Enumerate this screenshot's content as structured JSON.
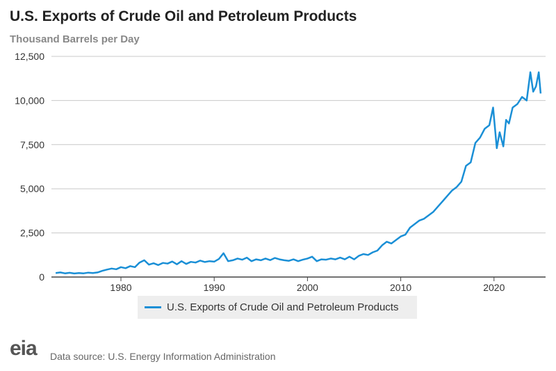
{
  "chart_data": {
    "type": "line",
    "title": "U.S. Exports of Crude Oil and Petroleum Products",
    "ylabel": "Thousand Barrels per Day",
    "xlabel": "",
    "ylim": [
      0,
      12500
    ],
    "xlim": [
      1973,
      2025.5
    ],
    "yticks": [
      "0",
      "2,500",
      "5,000",
      "7,500",
      "10,000",
      "12,500"
    ],
    "ytick_values": [
      0,
      2500,
      5000,
      7500,
      10000,
      12500
    ],
    "xticks": [
      "1980",
      "1990",
      "2000",
      "2010",
      "2020"
    ],
    "xtick_values": [
      1980,
      1990,
      2000,
      2010,
      2020
    ],
    "grid": "horizontal",
    "legend": "bottom",
    "color": "#1a8fd6",
    "series": [
      {
        "name": "U.S. Exports of Crude Oil and Petroleum Products",
        "x": [
          1973,
          1973.5,
          1974,
          1974.5,
          1975,
          1975.5,
          1976,
          1976.5,
          1977,
          1977.5,
          1978,
          1978.5,
          1979,
          1979.5,
          1980,
          1980.5,
          1981,
          1981.5,
          1982,
          1982.5,
          1983,
          1983.5,
          1984,
          1984.5,
          1985,
          1985.5,
          1986,
          1986.5,
          1987,
          1987.5,
          1988,
          1988.5,
          1989,
          1989.5,
          1990,
          1990.5,
          1991,
          1991.5,
          1992,
          1992.5,
          1993,
          1993.5,
          1994,
          1994.5,
          1995,
          1995.5,
          1996,
          1996.5,
          1997,
          1997.5,
          1998,
          1998.5,
          1999,
          1999.5,
          2000,
          2000.5,
          2001,
          2001.5,
          2002,
          2002.5,
          2003,
          2003.5,
          2004,
          2004.5,
          2005,
          2005.5,
          2006,
          2006.5,
          2007,
          2007.5,
          2008,
          2008.5,
          2009,
          2009.5,
          2010,
          2010.5,
          2011,
          2011.5,
          2012,
          2012.5,
          2013,
          2013.5,
          2014,
          2014.5,
          2015,
          2015.5,
          2016,
          2016.5,
          2017,
          2017.5,
          2018,
          2018.5,
          2019,
          2019.5,
          2019.9,
          2020.3,
          2020.6,
          2021,
          2021.3,
          2021.6,
          2022,
          2022.5,
          2023,
          2023.5,
          2023.9,
          2024.2,
          2024.5,
          2024.8,
          2025
        ],
        "y": [
          230,
          260,
          210,
          240,
          200,
          230,
          210,
          250,
          230,
          260,
          350,
          420,
          480,
          440,
          560,
          500,
          620,
          560,
          820,
          950,
          700,
          780,
          680,
          800,
          760,
          880,
          720,
          900,
          740,
          860,
          820,
          930,
          850,
          900,
          870,
          1020,
          1350,
          900,
          950,
          1050,
          980,
          1100,
          900,
          1000,
          950,
          1050,
          960,
          1080,
          1000,
          950,
          920,
          1000,
          900,
          980,
          1050,
          1150,
          900,
          1000,
          980,
          1050,
          1000,
          1100,
          1000,
          1150,
          1000,
          1200,
          1300,
          1250,
          1400,
          1500,
          1800,
          2000,
          1900,
          2100,
          2300,
          2400,
          2800,
          3000,
          3200,
          3300,
          3500,
          3700,
          4000,
          4300,
          4600,
          4900,
          5100,
          5400,
          6300,
          6500,
          7600,
          7900,
          8400,
          8600,
          9600,
          7300,
          8200,
          7400,
          8900,
          8700,
          9600,
          9800,
          10200,
          10000,
          11600,
          10500,
          10800,
          11600,
          10400
        ]
      }
    ]
  },
  "legend_label": "U.S. Exports of Crude Oil and Petroleum Products",
  "footer": {
    "logo_text": "eia",
    "source": "Data source: U.S. Energy Information Administration"
  }
}
